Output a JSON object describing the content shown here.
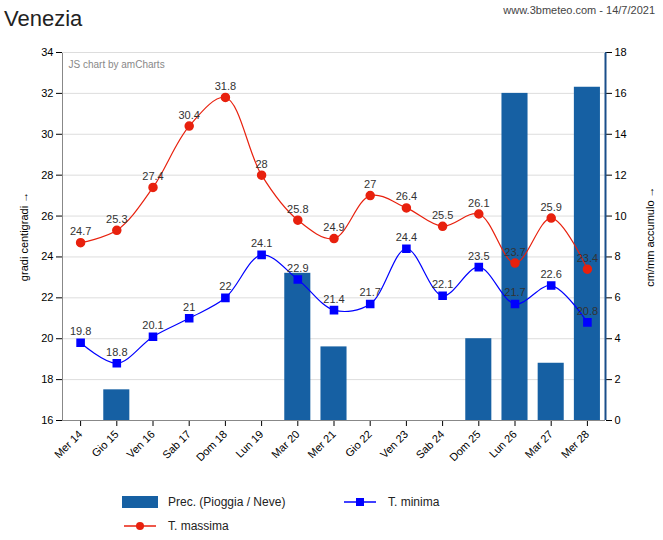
{
  "chart_data": {
    "type": "combo",
    "title": "Venezia",
    "subtitle": "www.3bmeteo.com - 14/7/2021",
    "watermark": "JS chart by amCharts",
    "categories": [
      "Mer 14",
      "Gio 15",
      "Ven 16",
      "Sab 17",
      "Dom 18",
      "Lun 19",
      "Mar 20",
      "Mer 21",
      "Gio 22",
      "Ven 23",
      "Sab 24",
      "Dom 25",
      "Lun 26",
      "Mar 27",
      "Mer 28"
    ],
    "series": [
      {
        "name": "Prec. (Pioggia / Neve)",
        "type": "bar",
        "axis": "y2",
        "color": "#1660a3",
        "data_labels": false,
        "values": [
          0,
          1.5,
          0,
          0,
          0,
          0,
          7.2,
          3.6,
          0,
          0,
          0,
          4,
          16,
          2.8,
          16.3
        ]
      },
      {
        "name": "T. minima",
        "type": "line",
        "color": "#0000ff",
        "marker": "square",
        "data_labels": true,
        "values": [
          19.8,
          18.8,
          20.1,
          21,
          22,
          24.1,
          22.9,
          21.4,
          21.7,
          24.4,
          22.1,
          23.5,
          21.7,
          22.6,
          20.8
        ]
      },
      {
        "name": "T. massima",
        "type": "line",
        "color": "#e8210e",
        "marker": "circle",
        "data_labels": true,
        "values": [
          24.7,
          25.3,
          27.4,
          30.4,
          31.8,
          28,
          25.8,
          24.9,
          27,
          26.4,
          25.5,
          26.1,
          23.7,
          25.9,
          23.4
        ]
      }
    ],
    "ylabel": "gradi centigradi",
    "ylim": [
      16,
      34
    ],
    "yticks": [
      16,
      18,
      20,
      22,
      24,
      26,
      28,
      30,
      32,
      34
    ],
    "y2label": "cm/mm accumulo",
    "y2lim": [
      0,
      18
    ],
    "y2ticks": [
      0,
      2,
      4,
      6,
      8,
      10,
      12,
      14,
      16,
      18
    ],
    "grid": true,
    "legend": "bottom"
  }
}
